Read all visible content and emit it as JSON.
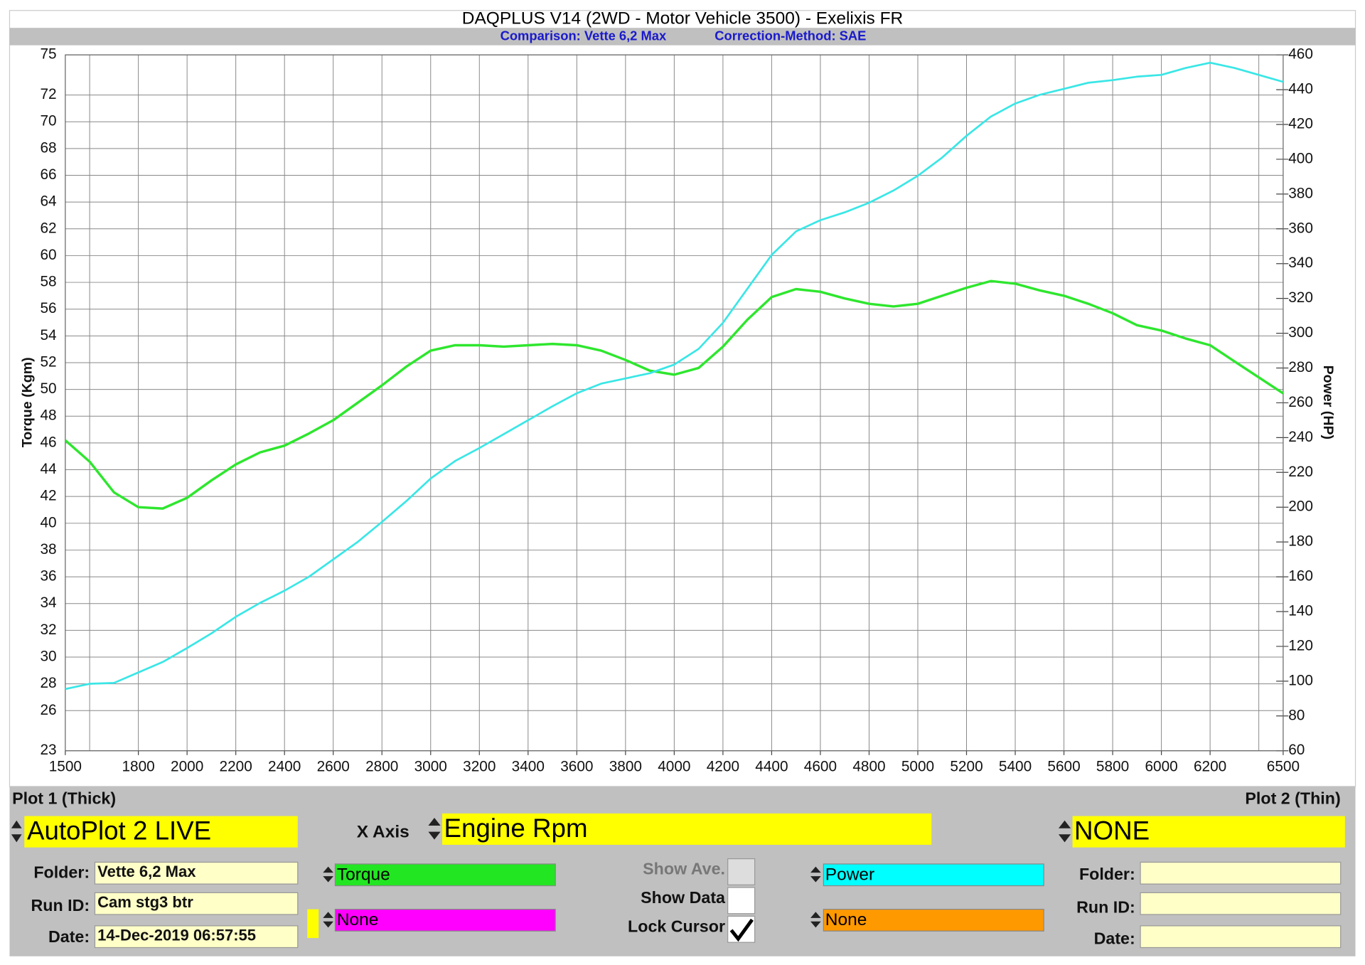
{
  "chart_data": {
    "type": "line",
    "title": "DAQPLUS V14 (2WD - Motor Vehicle 3500) - Exelixis FR",
    "subtitle": [
      "Comparison: Vette 6,2 Max",
      "Correction-Method: SAE"
    ],
    "ylabel": "Torque (Kgm)",
    "y2label": "Power (HP)",
    "x": [
      1500,
      1600,
      1700,
      1800,
      1900,
      2000,
      2100,
      2200,
      2300,
      2400,
      2500,
      2600,
      2700,
      2800,
      2900,
      3000,
      3100,
      3200,
      3300,
      3400,
      3500,
      3600,
      3700,
      3800,
      3900,
      4000,
      4100,
      4200,
      4300,
      4400,
      4500,
      4600,
      4700,
      4800,
      4900,
      5000,
      5100,
      5200,
      5300,
      5400,
      5500,
      5600,
      5700,
      5800,
      5900,
      6000,
      6100,
      6200,
      6300,
      6400,
      6500
    ],
    "series": [
      {
        "name": "Torque",
        "color": "#2ee62e",
        "axis": "y",
        "values": [
          46.2,
          44.6,
          42.3,
          41.2,
          41.1,
          41.9,
          43.2,
          44.4,
          45.3,
          45.8,
          46.7,
          47.7,
          49.0,
          50.3,
          51.7,
          52.9,
          53.3,
          53.3,
          53.2,
          53.3,
          53.4,
          53.3,
          52.9,
          52.2,
          51.4,
          51.1,
          51.6,
          53.2,
          55.2,
          56.9,
          57.5,
          57.3,
          56.8,
          56.4,
          56.2,
          56.4,
          57.0,
          57.6,
          58.1,
          57.9,
          57.4,
          57.0,
          56.4,
          55.7,
          54.8,
          54.4,
          53.8,
          53.3,
          52.1,
          50.9,
          49.7
        ]
      },
      {
        "name": "Power",
        "color": "#3ae6e6",
        "axis": "y2",
        "values": [
          95.5,
          98.5,
          99,
          105,
          111,
          119,
          127.5,
          137,
          145,
          152,
          160,
          170,
          180,
          191.5,
          203.5,
          216.5,
          226.5,
          234,
          242,
          250,
          258,
          265.5,
          271,
          274,
          277,
          282,
          291,
          306,
          325.5,
          345,
          358.5,
          365,
          369.5,
          375,
          382,
          390.5,
          401,
          413.5,
          424.5,
          432,
          437,
          440.5,
          444,
          445.5,
          447.5,
          448.5,
          452.5,
          455.5,
          452.5,
          448.5,
          444.5
        ]
      }
    ],
    "xlim": [
      1500,
      6500
    ],
    "xticks": [
      1500,
      1800,
      2000,
      2200,
      2400,
      2600,
      2800,
      3000,
      3200,
      3400,
      3600,
      3800,
      4000,
      4200,
      4400,
      4600,
      4800,
      5000,
      5200,
      5400,
      5600,
      5800,
      6000,
      6200,
      6500
    ],
    "xgrid": [
      1600,
      1800,
      2000,
      2200,
      2400,
      2600,
      2800,
      3000,
      3200,
      3400,
      3600,
      3800,
      4000,
      4200,
      4400,
      4600,
      4800,
      5000,
      5200,
      5400,
      5600,
      5800,
      6000,
      6200,
      6400
    ],
    "ylim": [
      23,
      75
    ],
    "yticks": [
      23,
      26,
      28,
      30,
      32,
      34,
      36,
      38,
      40,
      42,
      44,
      46,
      48,
      50,
      52,
      54,
      56,
      58,
      60,
      62,
      64,
      66,
      68,
      70,
      72,
      75
    ],
    "y2lim": [
      60,
      460
    ],
    "y2ticks": [
      60,
      80,
      100,
      120,
      140,
      160,
      180,
      200,
      220,
      240,
      260,
      280,
      300,
      320,
      340,
      360,
      380,
      400,
      420,
      440,
      460
    ],
    "grid": true
  },
  "panel": {
    "plot1_title": "Plot 1 (Thick)",
    "plot2_title": "Plot 2 (Thin)",
    "plot1_source": "AutoPlot 2 LIVE",
    "x_axis_label": "X Axis",
    "x_axis_value": "Engine Rpm",
    "plot2_source": "NONE",
    "left_fields": [
      {
        "label": "Folder:",
        "value": "Vette 6,2 Max"
      },
      {
        "label": "Run ID:",
        "value": "Cam stg3 btr"
      },
      {
        "label": "Date:",
        "value": "14-Dec-2019 06:57:55"
      }
    ],
    "right_fields": [
      {
        "label": "Folder:"
      },
      {
        "label": "Run ID:"
      },
      {
        "label": "Date:"
      }
    ],
    "channels": [
      {
        "name": "Torque",
        "color": "#22e622"
      },
      {
        "name": "None",
        "color": "#ff00ff"
      },
      {
        "name": "Power",
        "color": "#00ffff"
      },
      {
        "name": "None",
        "color": "#ff9900"
      }
    ],
    "checks": [
      {
        "label": "Show Ave.",
        "checked": false,
        "enabled": false
      },
      {
        "label": "Show Data",
        "checked": false,
        "enabled": true
      },
      {
        "label": "Lock Cursor",
        "checked": true,
        "enabled": true
      }
    ]
  }
}
